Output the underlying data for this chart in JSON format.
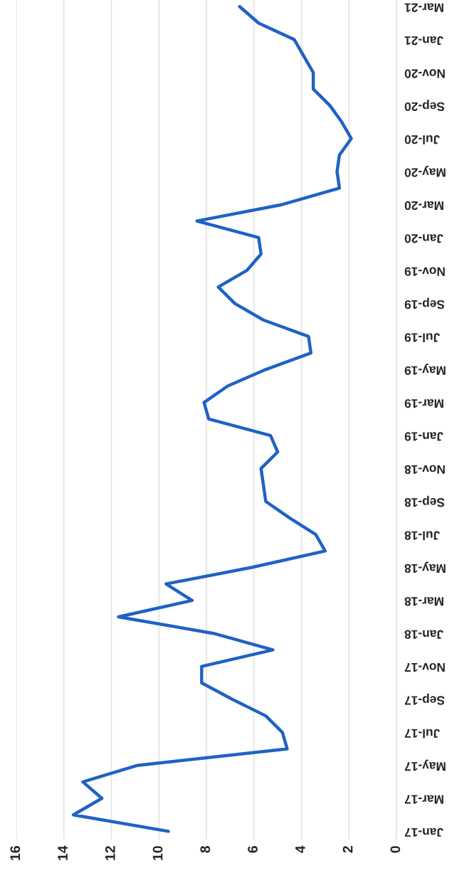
{
  "chart_data": {
    "type": "line",
    "orientation": "horizontal",
    "categories": [
      "Mar-21",
      null,
      "Jan-21",
      null,
      "Nov-20",
      null,
      "Sep-20",
      null,
      "Jul-20",
      null,
      "May-20",
      null,
      "Mar-20",
      null,
      "Jan-20",
      null,
      "Nov-19",
      null,
      "Sep-19",
      null,
      "Jul-19",
      null,
      "May-19",
      null,
      "Mar-19",
      null,
      "Jan-19",
      null,
      "Nov-18",
      null,
      "Sep-18",
      null,
      "Jul-18",
      null,
      "May-18",
      null,
      "Mar-18",
      null,
      "Jan-18",
      null,
      "Nov-17",
      null,
      "Sep-17",
      null,
      "Jul-17",
      null,
      "May-17",
      null,
      "Mar-17",
      null,
      "Jan-17"
    ],
    "series": [
      {
        "color": "#1f62c4",
        "values": [
          6.6,
          5.8,
          4.3,
          3.9,
          3.5,
          3.5,
          2.8,
          2.3,
          1.9,
          2.4,
          2.5,
          2.4,
          4.8,
          8.4,
          5.8,
          5.7,
          6.3,
          7.5,
          6.8,
          5.6,
          3.7,
          3.6,
          5.5,
          7.1,
          8.1,
          7.9,
          5.3,
          5.0,
          5.7,
          5.6,
          5.5,
          4.5,
          3.4,
          3.0,
          6.1,
          9.7,
          8.6,
          11.7,
          7.7,
          5.2,
          8.2,
          8.2,
          6.9,
          5.5,
          4.8,
          4.6,
          10.9,
          13.2,
          12.4,
          13.6,
          9.6
        ]
      }
    ],
    "xlim": [
      16,
      0
    ],
    "xticks": [
      0,
      2,
      4,
      6,
      8,
      10,
      12,
      14,
      16
    ],
    "grid": "x",
    "legend": false,
    "marker": "none",
    "line_style": "solid"
  }
}
